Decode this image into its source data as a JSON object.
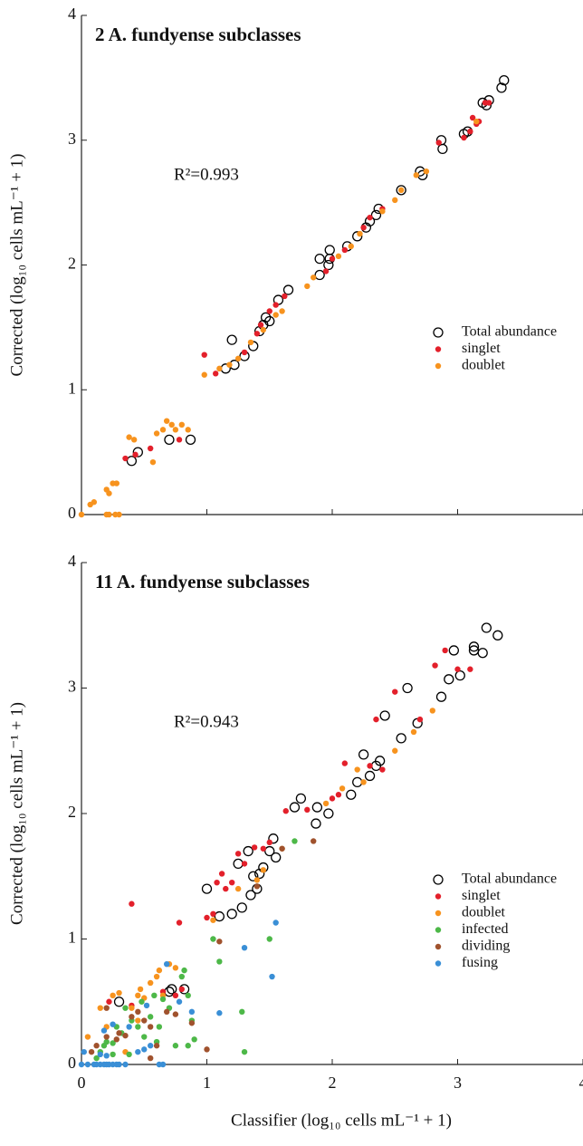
{
  "chart_data": [
    {
      "type": "scatter",
      "title": "2 A. fundyense subclasses",
      "annotation": "R²=0.993",
      "ylabel": "Corrected (log₁₀ cells mL⁻¹ + 1)",
      "xlim": [
        0,
        4
      ],
      "ylim": [
        0,
        4
      ],
      "xticks": [
        0,
        1,
        2,
        3,
        4
      ],
      "yticks": [
        0,
        1,
        2,
        3,
        4
      ],
      "show_xtick_labels": false,
      "legend": "right",
      "series": [
        {
          "name": "Total abundance",
          "color": "#000000",
          "marker": "open",
          "x": [
            0.4,
            0.45,
            0.7,
            0.87,
            1.15,
            1.2,
            1.22,
            1.3,
            1.37,
            1.42,
            1.45,
            1.47,
            1.5,
            1.57,
            1.65,
            1.9,
            1.9,
            1.97,
            1.98,
            1.98,
            2.12,
            2.2,
            2.27,
            2.3,
            2.35,
            2.37,
            2.55,
            2.7,
            2.72,
            2.87,
            2.88,
            3.05,
            3.08,
            3.2,
            3.23,
            3.25,
            3.35,
            3.37
          ],
          "values": [
            0.43,
            0.5,
            0.6,
            0.6,
            1.17,
            1.4,
            1.2,
            1.27,
            1.35,
            1.47,
            1.52,
            1.58,
            1.55,
            1.72,
            1.8,
            1.92,
            2.05,
            2.0,
            2.05,
            2.12,
            2.15,
            2.23,
            2.3,
            2.35,
            2.4,
            2.45,
            2.6,
            2.75,
            2.72,
            3.0,
            2.93,
            3.05,
            3.07,
            3.3,
            3.28,
            3.32,
            3.42,
            3.48
          ]
        },
        {
          "name": "singlet",
          "color": "#e3202b",
          "marker": "filled",
          "x": [
            0.98,
            1.07,
            0.35,
            0.43,
            0.55,
            0.78,
            1.43,
            1.5,
            1.55,
            1.62,
            1.95,
            2.0,
            2.25,
            2.3,
            2.4,
            2.85,
            3.05,
            3.1,
            3.12,
            3.15,
            3.17,
            3.22,
            3.25,
            1.3,
            1.4,
            2.1
          ],
          "values": [
            1.28,
            1.13,
            0.45,
            0.48,
            0.53,
            0.6,
            1.52,
            1.63,
            1.68,
            1.75,
            1.95,
            2.05,
            2.3,
            2.38,
            2.45,
            2.98,
            3.02,
            3.07,
            3.18,
            3.13,
            3.15,
            3.3,
            3.3,
            1.3,
            1.45,
            2.12
          ]
        },
        {
          "name": "doublet",
          "color": "#f7931e",
          "marker": "filled",
          "x": [
            0,
            0.07,
            0.1,
            0.2,
            0.22,
            0.27,
            0.3,
            0.2,
            0.25,
            0.28,
            0.22,
            0.38,
            0.42,
            0.57,
            0.6,
            0.65,
            0.68,
            0.72,
            0.75,
            0.8,
            0.85,
            0.98,
            1.1,
            1.18,
            1.25,
            1.35,
            1.45,
            1.55,
            1.6,
            1.8,
            1.85,
            2.05,
            2.15,
            2.22,
            2.4,
            2.5,
            2.55,
            2.67,
            2.75,
            3.15
          ],
          "values": [
            0,
            0.08,
            0.1,
            0,
            0,
            0,
            0,
            0.2,
            0.25,
            0.25,
            0.17,
            0.62,
            0.6,
            0.42,
            0.65,
            0.68,
            0.75,
            0.72,
            0.68,
            0.72,
            0.68,
            1.12,
            1.17,
            1.2,
            1.25,
            1.38,
            1.48,
            1.6,
            1.63,
            1.83,
            1.9,
            2.07,
            2.15,
            2.25,
            2.43,
            2.52,
            2.6,
            2.72,
            2.75,
            3.15
          ]
        }
      ]
    },
    {
      "type": "scatter",
      "title": "11 A. fundyense subclasses",
      "annotation": "R²=0.943",
      "ylabel": "Corrected (log₁₀ cells mL⁻¹ + 1)",
      "xlabel": "Classifier (log₁₀ cells mL⁻¹ + 1)",
      "xlim": [
        0,
        4
      ],
      "ylim": [
        0,
        4
      ],
      "xticks": [
        0,
        1,
        2,
        3,
        4
      ],
      "yticks": [
        0,
        1,
        2,
        3,
        4
      ],
      "show_xtick_labels": true,
      "legend": "right",
      "series": [
        {
          "name": "Total abundance",
          "color": "#000000",
          "marker": "open",
          "x": [
            1.0,
            1.1,
            1.2,
            1.25,
            1.28,
            1.33,
            1.35,
            1.37,
            1.4,
            1.42,
            1.45,
            1.5,
            1.53,
            1.55,
            1.7,
            1.75,
            1.87,
            1.88,
            1.97,
            2.15,
            2.2,
            2.25,
            2.3,
            2.35,
            2.38,
            2.42,
            2.55,
            2.6,
            2.68,
            2.87,
            2.93,
            2.97,
            3.02,
            3.13,
            3.13,
            3.2,
            3.23,
            3.32,
            0.3,
            0.72,
            0.82,
            0.7
          ],
          "values": [
            1.4,
            1.18,
            1.2,
            1.6,
            1.25,
            1.7,
            1.35,
            1.5,
            1.4,
            1.52,
            1.57,
            1.7,
            1.8,
            1.65,
            2.05,
            2.12,
            1.92,
            2.05,
            2.0,
            2.15,
            2.25,
            2.47,
            2.3,
            2.38,
            2.42,
            2.78,
            2.6,
            3.0,
            2.72,
            2.93,
            3.07,
            3.3,
            3.1,
            3.33,
            3.3,
            3.28,
            3.48,
            3.42,
            0.5,
            0.6,
            0.6,
            0.58
          ]
        },
        {
          "name": "singlet",
          "color": "#e3202b",
          "marker": "filled",
          "x": [
            0.22,
            0.4,
            0.65,
            0.75,
            0.8,
            0.4,
            0.78,
            1.0,
            1.05,
            1.08,
            1.12,
            1.15,
            1.2,
            1.25,
            1.3,
            1.38,
            1.45,
            1.5,
            1.63,
            1.8,
            2.05,
            2.0,
            2.1,
            2.3,
            2.35,
            2.4,
            2.5,
            2.7,
            2.82,
            2.9,
            3.0,
            3.1
          ],
          "values": [
            0.5,
            0.47,
            0.58,
            0.55,
            0.6,
            1.28,
            1.13,
            1.17,
            1.2,
            1.45,
            1.52,
            1.4,
            1.45,
            1.68,
            1.6,
            1.73,
            1.72,
            1.77,
            2.02,
            2.03,
            2.15,
            2.12,
            2.4,
            2.38,
            2.75,
            2.35,
            2.97,
            2.75,
            3.18,
            3.3,
            3.15,
            3.15
          ]
        },
        {
          "name": "doublet",
          "color": "#f7931e",
          "marker": "filled",
          "x": [
            0.05,
            0.15,
            0.2,
            0.25,
            0.3,
            0.4,
            0.45,
            0.47,
            0.5,
            0.55,
            0.6,
            0.62,
            0.7,
            0.75,
            0.65,
            1.05,
            1.25,
            1.4,
            1.45,
            1.6,
            1.95,
            2.08,
            2.2,
            2.25,
            2.5,
            2.65,
            2.8,
            0.45,
            0.35
          ],
          "values": [
            0.22,
            0.45,
            0.3,
            0.55,
            0.57,
            0.45,
            0.55,
            0.6,
            0.53,
            0.65,
            0.7,
            0.75,
            0.8,
            0.77,
            0.55,
            1.15,
            1.4,
            1.47,
            1.55,
            1.72,
            2.08,
            2.2,
            2.35,
            2.25,
            2.5,
            2.65,
            2.82,
            0.35,
            0.1
          ]
        },
        {
          "name": "infected",
          "color": "#4db848",
          "marker": "filled",
          "x": [
            0.12,
            0.15,
            0.18,
            0.2,
            0.25,
            0.28,
            0.32,
            0.35,
            0.4,
            0.45,
            0.48,
            0.5,
            0.55,
            0.58,
            0.62,
            0.65,
            0.7,
            0.75,
            0.8,
            0.82,
            0.85,
            0.88,
            0.9,
            0.85,
            1.05,
            1.1,
            1.28,
            1.3,
            1.5,
            1.7,
            0.25,
            0.6,
            0.38
          ],
          "values": [
            0.05,
            0.1,
            0.15,
            0.18,
            0.17,
            0.3,
            0.25,
            0.45,
            0.35,
            0.3,
            0.5,
            0.22,
            0.38,
            0.55,
            0.3,
            0.52,
            0.45,
            0.15,
            0.7,
            0.75,
            0.55,
            0.35,
            0.2,
            0.15,
            1.0,
            0.82,
            0.42,
            0.1,
            1.0,
            1.78,
            0.08,
            0.18,
            0.08
          ]
        },
        {
          "name": "dividing",
          "color": "#a0522d",
          "marker": "filled",
          "x": [
            0.08,
            0.12,
            0.2,
            0.28,
            0.3,
            0.35,
            0.4,
            0.45,
            0.5,
            0.55,
            0.6,
            0.68,
            0.75,
            0.88,
            1.0,
            1.1,
            1.4,
            1.6,
            1.85,
            0.55,
            0.2
          ],
          "values": [
            0.1,
            0.15,
            0.22,
            0.2,
            0.25,
            0.23,
            0.38,
            0.42,
            0.35,
            0.3,
            0.15,
            0.42,
            0.4,
            0.33,
            0.12,
            0.98,
            1.42,
            1.72,
            1.78,
            0.05,
            0.45
          ]
        },
        {
          "name": "fusing",
          "color": "#3a8fd6",
          "marker": "filled",
          "x": [
            0,
            0.02,
            0.05,
            0.1,
            0.12,
            0.15,
            0.18,
            0.2,
            0.22,
            0.25,
            0.28,
            0.3,
            0.35,
            0.18,
            0.25,
            0.38,
            0.45,
            0.5,
            0.52,
            0.55,
            0.62,
            0.65,
            0.68,
            0.78,
            0.88,
            1.1,
            1.3,
            1.52,
            1.55,
            0.15,
            0.2
          ],
          "values": [
            0,
            0.1,
            0,
            0,
            0,
            0,
            0,
            0,
            0,
            0,
            0,
            0,
            0,
            0.27,
            0.32,
            0.3,
            0.1,
            0.12,
            0.47,
            0.15,
            0,
            0,
            0.8,
            0.5,
            0.42,
            0.41,
            0.93,
            0.7,
            1.13,
            0.08,
            0.07
          ]
        }
      ]
    }
  ]
}
